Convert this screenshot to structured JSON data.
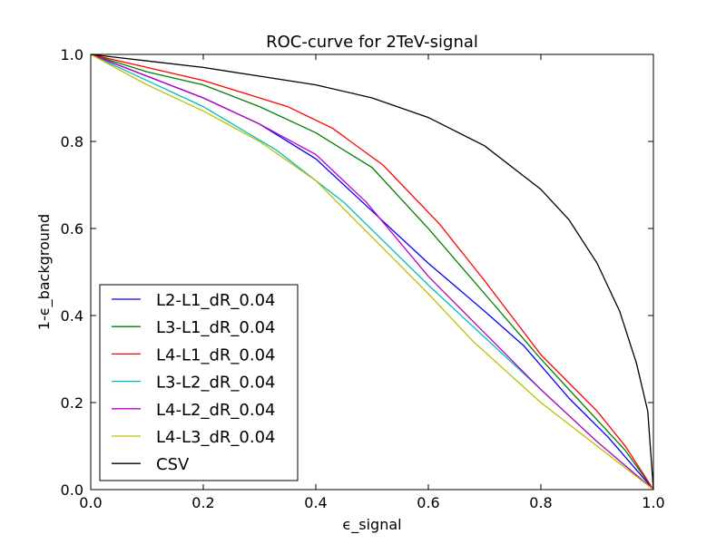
{
  "chart_data": {
    "type": "line",
    "title": "ROC-curve for 2TeV-signal",
    "xlabel": "ϵ_signal",
    "ylabel": "1-ϵ_background",
    "xlim": [
      0.0,
      1.0
    ],
    "ylim": [
      0.0,
      1.0
    ],
    "xticks": [
      "0.0",
      "0.2",
      "0.4",
      "0.6",
      "0.8",
      "1.0"
    ],
    "yticks": [
      "0.0",
      "0.2",
      "0.4",
      "0.6",
      "0.8",
      "1.0"
    ],
    "grid": false,
    "legend_position": "lower-left",
    "series": [
      {
        "name": "L2-L1_dR_0.04",
        "color": "#0000ff",
        "x": [
          0.0,
          0.1,
          0.2,
          0.3,
          0.4,
          0.5,
          0.6,
          0.7,
          0.77,
          0.85,
          0.92,
          1.0
        ],
        "y": [
          1.0,
          0.95,
          0.9,
          0.84,
          0.76,
          0.64,
          0.52,
          0.41,
          0.33,
          0.21,
          0.12,
          0.0
        ]
      },
      {
        "name": "L3-L1_dR_0.04",
        "color": "#008000",
        "x": [
          0.0,
          0.1,
          0.2,
          0.3,
          0.4,
          0.5,
          0.6,
          0.7,
          0.8,
          0.9,
          0.95,
          1.0
        ],
        "y": [
          1.0,
          0.96,
          0.93,
          0.88,
          0.82,
          0.74,
          0.6,
          0.45,
          0.3,
          0.16,
          0.09,
          0.0
        ]
      },
      {
        "name": "L4-L1_dR_0.04",
        "color": "#ff0000",
        "x": [
          0.0,
          0.1,
          0.2,
          0.3,
          0.35,
          0.43,
          0.52,
          0.62,
          0.7,
          0.8,
          0.9,
          0.95,
          1.0
        ],
        "y": [
          1.0,
          0.97,
          0.94,
          0.9,
          0.88,
          0.83,
          0.745,
          0.61,
          0.48,
          0.31,
          0.18,
          0.1,
          0.0
        ]
      },
      {
        "name": "L3-L2_dR_0.04",
        "color": "#00bfbf",
        "x": [
          0.0,
          0.1,
          0.2,
          0.33,
          0.45,
          0.6,
          0.7,
          0.8,
          0.9,
          1.0
        ],
        "y": [
          1.0,
          0.94,
          0.88,
          0.78,
          0.66,
          0.47,
          0.35,
          0.23,
          0.11,
          0.0
        ]
      },
      {
        "name": "L4-L2_dR_0.04",
        "color": "#bf00bf",
        "x": [
          0.0,
          0.1,
          0.2,
          0.3,
          0.4,
          0.49,
          0.6,
          0.7,
          0.8,
          0.9,
          1.0
        ],
        "y": [
          1.0,
          0.95,
          0.9,
          0.84,
          0.77,
          0.66,
          0.49,
          0.36,
          0.23,
          0.11,
          0.0
        ]
      },
      {
        "name": "L4-L3_dR_0.04",
        "color": "#bfbf00",
        "x": [
          0.0,
          0.1,
          0.2,
          0.3,
          0.4,
          0.5,
          0.6,
          0.68,
          0.8,
          0.9,
          1.0
        ],
        "y": [
          1.0,
          0.93,
          0.87,
          0.8,
          0.71,
          0.58,
          0.45,
          0.34,
          0.2,
          0.1,
          0.0
        ]
      },
      {
        "name": "CSV",
        "color": "#000000",
        "x": [
          0.0,
          0.1,
          0.2,
          0.3,
          0.4,
          0.5,
          0.6,
          0.7,
          0.8,
          0.85,
          0.9,
          0.94,
          0.97,
          0.99,
          1.0
        ],
        "y": [
          1.0,
          0.985,
          0.97,
          0.95,
          0.93,
          0.9,
          0.855,
          0.79,
          0.69,
          0.62,
          0.52,
          0.41,
          0.29,
          0.18,
          0.0
        ]
      }
    ]
  }
}
